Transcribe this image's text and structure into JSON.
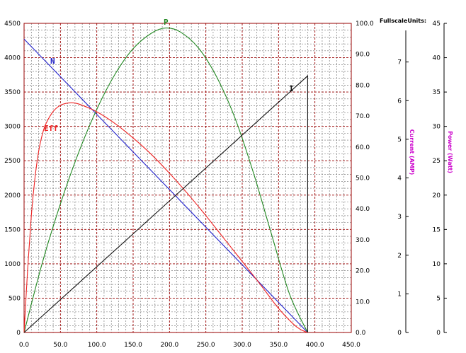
{
  "chart_data": {
    "type": "line",
    "header_text": "FullscaleUnits:",
    "grid": true,
    "colors": {
      "grid_major": "#990000",
      "grid_minor": "#6a6a6a",
      "N": "#2222cc",
      "P": "#228822",
      "Eff": "#ee2222",
      "I": "#111111",
      "axis_title": "#cc00cc"
    },
    "x_axis": {
      "ticks": [
        "0.0",
        "50.0",
        "100.0",
        "150.0",
        "200.0",
        "250.0",
        "300.0",
        "350.0",
        "400.0",
        "450.0"
      ],
      "range": [
        0,
        450
      ]
    },
    "left_axis": {
      "ticks": [
        "0",
        "500",
        "1000",
        "1500",
        "2000",
        "2500",
        "3000",
        "3500",
        "4000",
        "4500"
      ],
      "range": [
        0,
        4500
      ]
    },
    "right_axis": {
      "ticks": [
        "0.0",
        "10.0",
        "20.0",
        "30.0",
        "40.0",
        "50.0",
        "60.0",
        "70.0",
        "80.0",
        "90.0",
        "100.0"
      ],
      "range": [
        0,
        100
      ]
    },
    "current_axis": {
      "title": "Current (AMP)",
      "ticks": [
        "0",
        "1",
        "2",
        "3",
        "4",
        "5",
        "6",
        "7"
      ],
      "range": [
        0,
        8
      ]
    },
    "power_axis": {
      "title": "Power (Watt)",
      "ticks": [
        "0",
        "5",
        "10",
        "15",
        "20",
        "25",
        "30",
        "35",
        "40",
        "45"
      ],
      "range": [
        0,
        45
      ]
    },
    "series": [
      {
        "name": "N",
        "axis": "left",
        "x": [
          0,
          390
        ],
        "y": [
          4270,
          0
        ]
      },
      {
        "name": "P",
        "axis": "right",
        "x": [
          0,
          25,
          50,
          75,
          100,
          125,
          150,
          175,
          195,
          215,
          240,
          265,
          290,
          315,
          340,
          365,
          390
        ],
        "y": [
          0,
          22.5,
          41.6,
          58.2,
          72.2,
          83.5,
          91.8,
          96.8,
          98.5,
          97.2,
          92.0,
          82.6,
          69.4,
          52.0,
          32.0,
          12.5,
          0
        ]
      },
      {
        "name": "Eff",
        "axis": "right",
        "x": [
          0,
          5,
          10,
          15,
          20,
          25,
          30,
          40,
          50,
          60,
          70,
          80,
          100,
          125,
          150,
          175,
          200,
          225,
          250,
          275,
          300,
          325,
          350,
          370,
          380,
          390
        ],
        "y": [
          0,
          20.7,
          38.0,
          50.0,
          58.5,
          64.0,
          67.5,
          71.5,
          73.5,
          74.2,
          74.2,
          73.5,
          71.4,
          67.6,
          62.9,
          57.6,
          51.5,
          44.9,
          37.8,
          30.4,
          23.0,
          15.5,
          7.8,
          2.8,
          1.0,
          0
        ]
      },
      {
        "name": "I",
        "axis": "right",
        "x": [
          0,
          390,
          390
        ],
        "y": [
          0,
          83.0,
          0
        ]
      }
    ]
  }
}
